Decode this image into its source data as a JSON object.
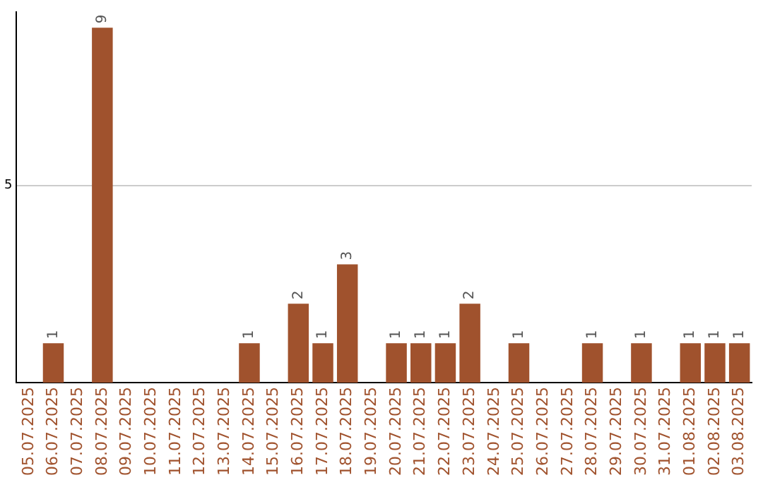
{
  "chart_data": {
    "type": "bar",
    "categories": [
      "05.07.2025",
      "06.07.2025",
      "07.07.2025",
      "08.07.2025",
      "09.07.2025",
      "10.07.2025",
      "11.07.2025",
      "12.07.2025",
      "13.07.2025",
      "14.07.2025",
      "15.07.2025",
      "16.07.2025",
      "17.07.2025",
      "18.07.2025",
      "19.07.2025",
      "20.07.2025",
      "21.07.2025",
      "22.07.2025",
      "23.07.2025",
      "24.07.2025",
      "25.07.2025",
      "26.07.2025",
      "27.07.2025",
      "28.07.2025",
      "29.07.2025",
      "30.07.2025",
      "31.07.2025",
      "01.08.2025",
      "02.08.2025",
      "03.08.2025"
    ],
    "values": [
      0,
      1,
      0,
      9,
      0,
      0,
      0,
      0,
      0,
      1,
      0,
      2,
      1,
      3,
      0,
      1,
      1,
      1,
      2,
      0,
      1,
      0,
      0,
      1,
      0,
      1,
      0,
      1,
      1,
      1
    ],
    "value_labels": [
      null,
      "1",
      null,
      "9",
      null,
      null,
      null,
      null,
      null,
      "1",
      null,
      "2",
      "1",
      "3",
      null,
      "1",
      "1",
      "1",
      "2",
      null,
      "1",
      null,
      null,
      "1",
      null,
      "1",
      null,
      "1",
      "1",
      "1"
    ],
    "color": "#a0522d",
    "ylim": [
      0,
      9.4
    ],
    "yticks": [
      5
    ],
    "grid": "y",
    "legend": false
  }
}
